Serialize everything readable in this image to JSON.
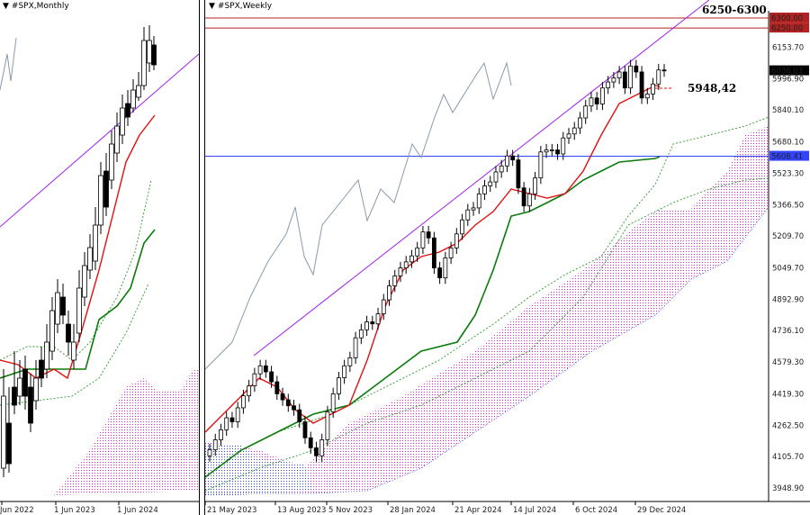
{
  "left_chart": {
    "title": "#SPX,Monthly",
    "x_labels": [
      "Jun 2022",
      "1 Jun 2023",
      "1 Jun 2024"
    ]
  },
  "right_chart": {
    "title": "#SPX,Weekly",
    "x_labels": [
      "21 May 2023",
      "13 Aug 2023",
      "5 Nov 2023",
      "28 Jan 2024",
      "21 Apr 2024",
      "14 Jul 2024",
      "6 Oct 2024",
      "29 Dec 2024"
    ],
    "y_labels": [
      "6153.70",
      "5996.90",
      "5840.10",
      "5680.10",
      "5523.30",
      "5366.50",
      "5209.70",
      "5049.70",
      "4892.90",
      "4736.10",
      "4579.30",
      "4419.30",
      "4262.50",
      "4105.70",
      "3948.90"
    ],
    "price_tags": {
      "r1": "6300.00",
      "r2": "6250.00",
      "last": "6036.03",
      "support": "5608.41"
    },
    "annotations": {
      "zone": "6250-6300",
      "level": "5948,42"
    }
  },
  "chart_data": [
    {
      "type": "candlestick",
      "panel": "left",
      "title": "#SPX,Monthly",
      "x_tick_labels": [
        "Jun 2022",
        "1 Jun 2023",
        "1 Jun 2024"
      ],
      "indicators": [
        "Ichimoku cloud (pink dotted)",
        "Tenkan (red)",
        "Kijun (green)",
        "Chikou (grey)",
        "trendline (violet)"
      ]
    },
    {
      "type": "candlestick",
      "panel": "right",
      "title": "#SPX,Weekly",
      "x_tick_labels": [
        "21 May 2023",
        "13 Aug 2023",
        "5 Nov 2023",
        "28 Jan 2024",
        "21 Apr 2024",
        "14 Jul 2024",
        "6 Oct 2024",
        "29 Dec 2024"
      ],
      "ylim": [
        3948.9,
        6300
      ],
      "y_tick_labels": [
        6153.7,
        5996.9,
        5840.1,
        5680.1,
        5523.3,
        5366.5,
        5209.7,
        5049.7,
        4892.9,
        4736.1,
        4579.3,
        4419.3,
        4262.5,
        4105.7,
        3948.9
      ],
      "horizontal_levels": [
        {
          "value": 6300.0,
          "color": "#b22222"
        },
        {
          "value": 6250.0,
          "color": "#b22222"
        },
        {
          "value": 5608.41,
          "color": "#3344ff"
        }
      ],
      "last_price": 6036.03,
      "marked_level": 5948.42,
      "candles_approx_close": [
        4140,
        4190,
        4240,
        4300,
        4280,
        4350,
        4410,
        4460,
        4520,
        4560,
        4530,
        4480,
        4420,
        4390,
        4360,
        4340,
        4280,
        4200,
        4150,
        4110,
        4190,
        4330,
        4420,
        4500,
        4560,
        4600,
        4700,
        4740,
        4780,
        4770,
        4820,
        4890,
        4960,
        5010,
        5050,
        5080,
        5110,
        5150,
        5230,
        5200,
        5050,
        5000,
        5100,
        5150,
        5220,
        5290,
        5340,
        5350,
        5420,
        5460,
        5480,
        5530,
        5560,
        5610,
        5590,
        5450,
        5360,
        5420,
        5500,
        5630,
        5640,
        5640,
        5620,
        5700,
        5720,
        5750,
        5800,
        5860,
        5900,
        5870,
        5950,
        5980,
        6000,
        6030,
        5950,
        6060,
        6030,
        5900,
        5920,
        5970,
        6040,
        6036
      ]
    }
  ]
}
